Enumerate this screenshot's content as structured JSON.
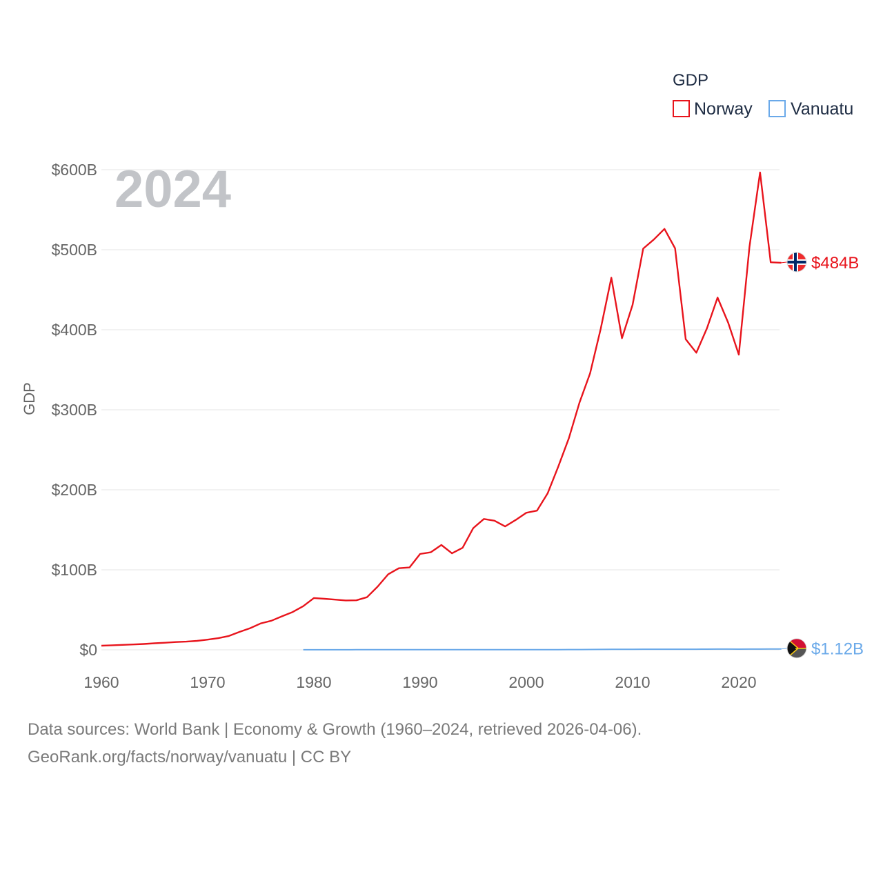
{
  "chart_data": {
    "type": "line",
    "title": "2024",
    "ylabel": "GDP",
    "xlabel": "",
    "xlim": [
      1960,
      2024
    ],
    "ylim": [
      0,
      600
    ],
    "y_unit": "billions USD",
    "x_ticks": [
      1960,
      1970,
      1980,
      1990,
      2000,
      2010,
      2020
    ],
    "y_ticks": [
      0,
      100,
      200,
      300,
      400,
      500,
      600
    ],
    "y_tick_labels": [
      "$0",
      "$100B",
      "$200B",
      "$300B",
      "$400B",
      "$500B",
      "$600B"
    ],
    "x_tick_labels": [
      "1960",
      "1970",
      "1980",
      "1990",
      "2000",
      "2010",
      "2020"
    ],
    "grid": true,
    "legend": {
      "title": "GDP",
      "position": "top-right"
    },
    "series": [
      {
        "name": "Norway",
        "color": "#e8141c",
        "end_label": "$484B",
        "flag": "norway-flag",
        "x": [
          1960,
          1961,
          1962,
          1963,
          1964,
          1965,
          1966,
          1967,
          1968,
          1969,
          1970,
          1971,
          1972,
          1973,
          1974,
          1975,
          1976,
          1977,
          1978,
          1979,
          1980,
          1981,
          1982,
          1983,
          1984,
          1985,
          1986,
          1987,
          1988,
          1989,
          1990,
          1991,
          1992,
          1993,
          1994,
          1995,
          1996,
          1997,
          1998,
          1999,
          2000,
          2001,
          2002,
          2003,
          2004,
          2005,
          2006,
          2007,
          2008,
          2009,
          2010,
          2011,
          2012,
          2013,
          2014,
          2015,
          2016,
          2017,
          2018,
          2019,
          2020,
          2021,
          2022,
          2023,
          2024
        ],
        "values": [
          5.2,
          5.7,
          6.2,
          6.7,
          7.3,
          8.2,
          8.9,
          9.7,
          10.3,
          11.2,
          12.8,
          14.6,
          17.3,
          22.4,
          27.1,
          33.0,
          36.4,
          41.9,
          47.2,
          54.6,
          64.7,
          63.8,
          62.8,
          61.7,
          61.9,
          65.8,
          79.0,
          94.5,
          102.0,
          102.9,
          119.8,
          121.9,
          131.0,
          120.6,
          127.5,
          152.1,
          163.5,
          161.4,
          154.2,
          162.3,
          171.3,
          174.0,
          195.4,
          228.8,
          264.4,
          308.9,
          345.6,
          401.2,
          465.0,
          389.4,
          431.1,
          501.4,
          512.8,
          526.0,
          501.7,
          388.2,
          371.3,
          401.8,
          440.2,
          408.7,
          368.9,
          503.4,
          596.6,
          484.3,
          483.7
        ]
      },
      {
        "name": "Vanuatu",
        "color": "#6aa9e9",
        "end_label": "$1.12B",
        "flag": "vanuatu-flag",
        "x": [
          1979,
          1980,
          1981,
          1982,
          1983,
          1984,
          1985,
          1986,
          1987,
          1988,
          1989,
          1990,
          1991,
          1992,
          1993,
          1994,
          1995,
          1996,
          1997,
          1998,
          1999,
          2000,
          2001,
          2002,
          2003,
          2004,
          2005,
          2006,
          2007,
          2008,
          2009,
          2010,
          2011,
          2012,
          2013,
          2014,
          2015,
          2016,
          2017,
          2018,
          2019,
          2020,
          2021,
          2022,
          2023,
          2024
        ],
        "values": [
          0.08,
          0.12,
          0.11,
          0.12,
          0.12,
          0.13,
          0.13,
          0.13,
          0.13,
          0.15,
          0.16,
          0.15,
          0.17,
          0.18,
          0.19,
          0.2,
          0.21,
          0.23,
          0.24,
          0.24,
          0.24,
          0.25,
          0.24,
          0.24,
          0.29,
          0.33,
          0.37,
          0.41,
          0.51,
          0.61,
          0.62,
          0.7,
          0.79,
          0.78,
          0.8,
          0.81,
          0.74,
          0.79,
          0.85,
          0.92,
          0.93,
          0.89,
          0.96,
          0.98,
          1.06,
          1.12
        ]
      }
    ]
  },
  "footer": {
    "line1": "Data sources: World Bank | Economy & Growth (1960–2024, retrieved 2026-04-06).",
    "line2": "GeoRank.org/facts/norway/vanuatu | CC BY"
  }
}
